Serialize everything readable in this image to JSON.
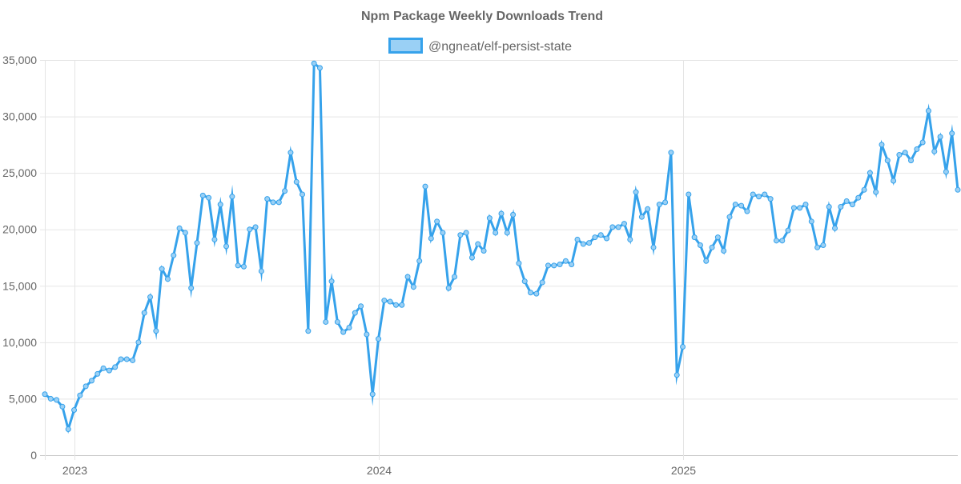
{
  "chart_data": {
    "type": "line",
    "title": "Npm Package Weekly Downloads Trend",
    "xlabel": "",
    "ylabel": "",
    "ylim": [
      0,
      35000
    ],
    "y_ticks": [
      0,
      5000,
      10000,
      15000,
      20000,
      25000,
      30000,
      35000
    ],
    "y_tick_labels": [
      "0",
      "5,000",
      "10,000",
      "15,000",
      "20,000",
      "25,000",
      "30,000",
      "35,000"
    ],
    "x_tick_labels": [
      "2023",
      "2024",
      "2025"
    ],
    "x_tick_weeks": [
      5,
      57,
      109
    ],
    "grid": true,
    "legend": "top-center",
    "colors": {
      "line": "#36a2eb",
      "fill": "#9ad0f5",
      "grid": "#e5e5e5",
      "text": "#666666"
    },
    "series": [
      {
        "name": "@ngneat/elf-persist-state",
        "x_unit": "week index (week 0 ≈ mid-Dec 2022)",
        "values": [
          5400,
          5000,
          4900,
          4300,
          2300,
          4000,
          5300,
          6100,
          6600,
          7200,
          7700,
          7500,
          7800,
          8500,
          8500,
          8400,
          10000,
          12600,
          14000,
          11000,
          16500,
          15600,
          17700,
          20100,
          19700,
          14800,
          18800,
          23000,
          22800,
          19100,
          22200,
          18500,
          22900,
          16800,
          16700,
          20000,
          20200,
          16300,
          22700,
          22400,
          22400,
          23400,
          26800,
          24200,
          23100,
          11000,
          34700,
          34300,
          11800,
          15400,
          11800,
          10900,
          11300,
          12600,
          13200,
          10700,
          5400,
          10300,
          13700,
          13600,
          13300,
          13300,
          15800,
          14900,
          17200,
          23800,
          19200,
          20700,
          19700,
          14800,
          15800,
          19500,
          19700,
          17500,
          18700,
          18100,
          21000,
          19700,
          21400,
          19700,
          21300,
          17000,
          15400,
          14400,
          14300,
          15300,
          16800,
          16800,
          16900,
          17200,
          16900,
          19100,
          18700,
          18800,
          19300,
          19500,
          19200,
          20200,
          20200,
          20500,
          19100,
          23300,
          21100,
          21800,
          18400,
          22200,
          22400,
          26800,
          7100,
          9600,
          23100,
          19300,
          18600,
          17200,
          18400,
          19300,
          18100,
          21100,
          22200,
          22100,
          21600,
          23100,
          22900,
          23100,
          22700,
          19000,
          19000,
          19900,
          21900,
          21900,
          22200,
          20700,
          18400,
          18600,
          22000,
          20100,
          22000,
          22500,
          22200,
          22800,
          23500,
          25000,
          23300,
          27500,
          26100,
          24300,
          26600,
          26800,
          26100,
          27100,
          27700,
          30500,
          26900,
          28200,
          25100,
          28500,
          23500
        ]
      }
    ]
  }
}
